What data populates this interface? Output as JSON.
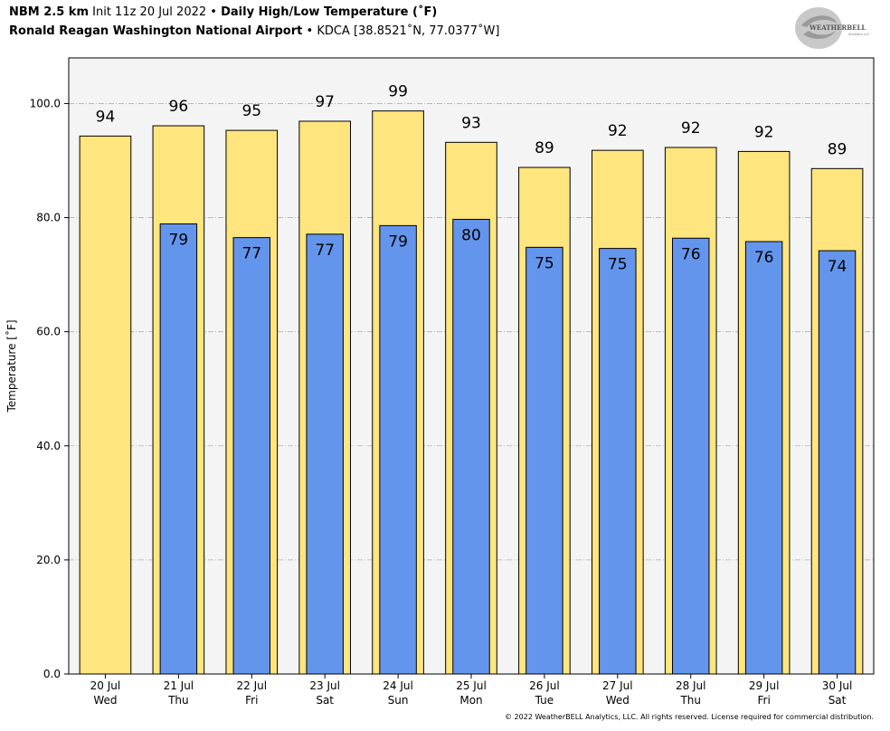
{
  "header": {
    "model": "NBM 2.5 km",
    "init": "Init 11z 20 Jul 2022",
    "bullet": "•",
    "title": "Daily High/Low Temperature (˚F)",
    "station": "Ronald Reagan Washington National Airport",
    "station_code": "KDCA [38.8521˚N, 77.0377˚W]"
  },
  "logo": {
    "brand": "WEATHERBELL",
    "sub": "Analytics LLC"
  },
  "footer": "© 2022 WeatherBELL Analytics, LLC. All rights reserved. License required for commercial distribution.",
  "colors": {
    "high": "#ffe57e",
    "low": "#6495ed",
    "plot_bg": "#f4f4f4",
    "grid": "#b0b0b0"
  },
  "chart_data": {
    "type": "bar",
    "ylabel": "Temperature [˚F]",
    "ylim": [
      0,
      108
    ],
    "yticks": [
      "0.0",
      "20.0",
      "40.0",
      "60.0",
      "80.0",
      "100.0"
    ],
    "grid": true,
    "categories": [
      "20 Jul",
      "21 Jul",
      "22 Jul",
      "23 Jul",
      "24 Jul",
      "25 Jul",
      "26 Jul",
      "27 Jul",
      "28 Jul",
      "29 Jul",
      "30 Jul"
    ],
    "weekdays": [
      "Wed",
      "Thu",
      "Fri",
      "Sat",
      "Sun",
      "Mon",
      "Tue",
      "Wed",
      "Thu",
      "Fri",
      "Sat"
    ],
    "series": [
      {
        "values": [
          94.3,
          96.1,
          95.3,
          96.9,
          98.7,
          93.2,
          88.8,
          91.8,
          92.3,
          91.6,
          88.6
        ],
        "labels": [
          "94",
          "96",
          "95",
          "97",
          "99",
          "93",
          "89",
          "92",
          "92",
          "92",
          "89"
        ]
      },
      {
        "values": [
          null,
          78.9,
          76.5,
          77.1,
          78.6,
          79.7,
          74.8,
          74.6,
          76.4,
          75.8,
          74.2
        ],
        "labels": [
          "",
          "79",
          "77",
          "77",
          "79",
          "80",
          "75",
          "75",
          "76",
          "76",
          "74"
        ]
      }
    ]
  }
}
